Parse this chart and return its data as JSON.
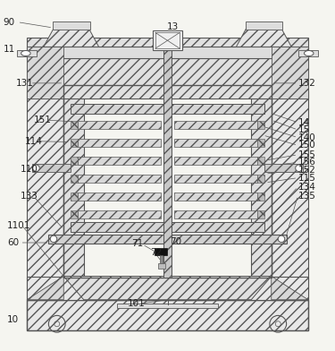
{
  "bg_color": "#f5f5f0",
  "line_color": "#555555",
  "label_color": "#222222",
  "font_size": 7.5
}
